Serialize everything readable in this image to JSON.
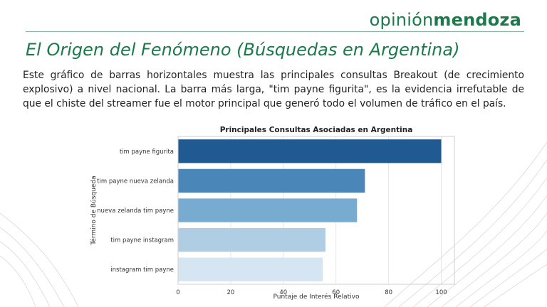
{
  "brand": {
    "part1": "opinión",
    "part2": "mendoza"
  },
  "slide": {
    "title": "El Origen del Fenómeno (Búsquedas en Argentina)",
    "body": "Este gráfico de barras horizontales muestra las principales consultas Breakout (de crecimiento explosivo) a nivel nacional. La barra más larga, \"tim payne figurita\", es la evidencia irrefutable de que el chiste del streamer fue el motor principal que generó todo el volumen de tráfico en el país."
  },
  "colors": {
    "brand": "#1a7a4a",
    "bars": [
      "#215a93",
      "#4a86b8",
      "#77abcf",
      "#b0cee3",
      "#d6e5f2"
    ]
  },
  "chart_data": {
    "type": "bar",
    "orientation": "horizontal",
    "title": "Principales Consultas Asociadas en Argentina",
    "xlabel": "Puntaje de Interés Relativo",
    "ylabel": "Término de Búsqueda",
    "categories": [
      "tim payne figurita",
      "tim payne nueva zelanda",
      "nueva zelanda tim payne",
      "tim payne instagram",
      "instagram tim payne"
    ],
    "values": [
      100,
      71,
      68,
      56,
      55
    ],
    "xlim": [
      0,
      105
    ],
    "xticks": [
      0,
      20,
      40,
      60,
      80,
      100
    ],
    "grid": true
  }
}
